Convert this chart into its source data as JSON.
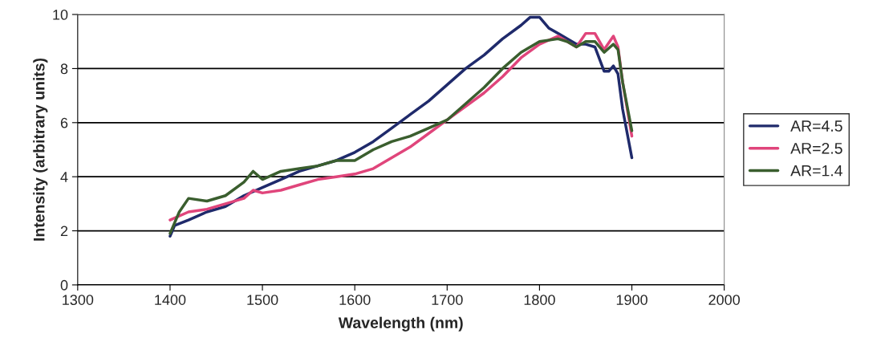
{
  "chart_data": {
    "type": "line",
    "xlabel": "Wavelength (nm)",
    "ylabel": "Intensity (arbitrary units)",
    "xlim": [
      1300,
      2000
    ],
    "xticks": [
      1300,
      1400,
      1500,
      1600,
      1700,
      1800,
      1900,
      2000
    ],
    "ylim": [
      0,
      10
    ],
    "yticks": [
      0,
      2,
      4,
      6,
      8,
      10
    ],
    "grid": "y",
    "legend": "right",
    "marker": "none",
    "line_style": "solid",
    "series": [
      {
        "name": "AR=4.5",
        "color": "#1f2a6b",
        "x": [
          1400,
          1405,
          1420,
          1440,
          1460,
          1480,
          1500,
          1520,
          1540,
          1560,
          1580,
          1600,
          1620,
          1640,
          1660,
          1680,
          1700,
          1720,
          1740,
          1760,
          1780,
          1790,
          1800,
          1810,
          1820,
          1830,
          1840,
          1850,
          1860,
          1870,
          1875,
          1880,
          1885,
          1890,
          1900
        ],
        "values": [
          1.8,
          2.2,
          2.4,
          2.7,
          2.9,
          3.3,
          3.6,
          3.9,
          4.2,
          4.4,
          4.6,
          4.9,
          5.3,
          5.8,
          6.3,
          6.8,
          7.4,
          8.0,
          8.5,
          9.1,
          9.6,
          9.9,
          9.9,
          9.5,
          9.3,
          9.1,
          8.9,
          8.9,
          8.8,
          7.9,
          7.9,
          8.1,
          7.8,
          6.5,
          4.7
        ]
      },
      {
        "name": "AR=2.5",
        "color": "#e0457b",
        "x": [
          1400,
          1420,
          1440,
          1460,
          1480,
          1490,
          1500,
          1520,
          1540,
          1560,
          1580,
          1600,
          1620,
          1640,
          1660,
          1680,
          1700,
          1720,
          1740,
          1760,
          1780,
          1800,
          1820,
          1830,
          1840,
          1850,
          1860,
          1870,
          1880,
          1885,
          1890,
          1900
        ],
        "values": [
          2.4,
          2.7,
          2.8,
          3.0,
          3.2,
          3.5,
          3.4,
          3.5,
          3.7,
          3.9,
          4.0,
          4.1,
          4.3,
          4.7,
          5.1,
          5.6,
          6.1,
          6.6,
          7.1,
          7.7,
          8.4,
          8.9,
          9.2,
          9.0,
          8.8,
          9.3,
          9.3,
          8.7,
          9.2,
          8.8,
          7.5,
          5.5
        ]
      },
      {
        "name": "AR=1.4",
        "color": "#3a5e2e",
        "x": [
          1400,
          1410,
          1420,
          1440,
          1460,
          1480,
          1490,
          1500,
          1520,
          1540,
          1560,
          1580,
          1600,
          1620,
          1640,
          1660,
          1680,
          1700,
          1720,
          1740,
          1760,
          1780,
          1800,
          1820,
          1830,
          1840,
          1850,
          1860,
          1870,
          1880,
          1885,
          1890,
          1900
        ],
        "values": [
          1.9,
          2.7,
          3.2,
          3.1,
          3.3,
          3.8,
          4.2,
          3.9,
          4.2,
          4.3,
          4.4,
          4.6,
          4.6,
          5.0,
          5.3,
          5.5,
          5.8,
          6.1,
          6.7,
          7.3,
          8.0,
          8.6,
          9.0,
          9.1,
          9.0,
          8.8,
          9.0,
          9.0,
          8.6,
          8.9,
          8.7,
          7.5,
          5.7
        ]
      }
    ]
  }
}
